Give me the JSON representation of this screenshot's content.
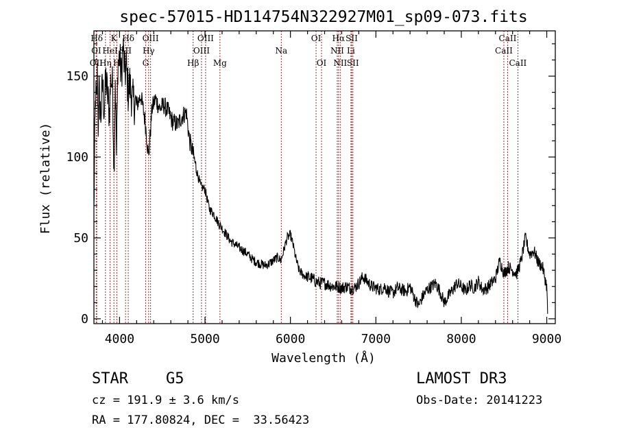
{
  "chart_data": {
    "type": "line",
    "title": "spec-57015-HD114754N322927M01_sp09-073.fits",
    "xlabel": "Wavelength (Å)",
    "ylabel": "Flux (relative)",
    "xlim": [
      3700,
      9100
    ],
    "ylim": [
      -3,
      178
    ],
    "x_ticks": [
      4000,
      5000,
      6000,
      7000,
      8000,
      9000
    ],
    "y_ticks": [
      0,
      50,
      100,
      150
    ],
    "x_tick_labels": [
      "4000",
      "5000",
      "6000",
      "7000",
      "8000",
      "9000"
    ],
    "y_tick_labels": [
      "0",
      "50",
      "100",
      "150"
    ],
    "grid": false,
    "series": [
      {
        "color": "#000000",
        "points": [
          [
            3700,
            66
          ],
          [
            3710,
            110
          ],
          [
            3720,
            140
          ],
          [
            3730,
            130
          ],
          [
            3740,
            150
          ],
          [
            3750,
            120
          ],
          [
            3760,
            140
          ],
          [
            3780,
            125
          ],
          [
            3800,
            145
          ],
          [
            3820,
            130
          ],
          [
            3840,
            148
          ],
          [
            3860,
            138
          ],
          [
            3880,
            128
          ],
          [
            3900,
            150
          ],
          [
            3920,
            142
          ],
          [
            3935,
            90
          ],
          [
            3950,
            150
          ],
          [
            3965,
            100
          ],
          [
            3980,
            158
          ],
          [
            4000,
            162
          ],
          [
            4020,
            150
          ],
          [
            4040,
            168
          ],
          [
            4060,
            152
          ],
          [
            4080,
            155
          ],
          [
            4100,
            140
          ],
          [
            4120,
            145
          ],
          [
            4150,
            135
          ],
          [
            4200,
            132
          ],
          [
            4250,
            138
          ],
          [
            4300,
            122
          ],
          [
            4340,
            100
          ],
          [
            4380,
            130
          ],
          [
            4420,
            136
          ],
          [
            4470,
            130
          ],
          [
            4520,
            132
          ],
          [
            4570,
            128
          ],
          [
            4620,
            122
          ],
          [
            4680,
            120
          ],
          [
            4730,
            125
          ],
          [
            4780,
            128
          ],
          [
            4820,
            110
          ],
          [
            4860,
            102
          ],
          [
            4900,
            92
          ],
          [
            4950,
            82
          ],
          [
            5000,
            80
          ],
          [
            5050,
            68
          ],
          [
            5100,
            65
          ],
          [
            5150,
            60
          ],
          [
            5200,
            56
          ],
          [
            5250,
            52
          ],
          [
            5300,
            48
          ],
          [
            5350,
            46
          ],
          [
            5400,
            44
          ],
          [
            5450,
            42
          ],
          [
            5500,
            40
          ],
          [
            5550,
            37
          ],
          [
            5600,
            35
          ],
          [
            5650,
            34
          ],
          [
            5700,
            33
          ],
          [
            5750,
            34
          ],
          [
            5800,
            36
          ],
          [
            5850,
            38
          ],
          [
            5890,
            36
          ],
          [
            5920,
            42
          ],
          [
            5960,
            50
          ],
          [
            6000,
            52
          ],
          [
            6030,
            46
          ],
          [
            6060,
            38
          ],
          [
            6100,
            30
          ],
          [
            6150,
            27
          ],
          [
            6200,
            26
          ],
          [
            6250,
            25
          ],
          [
            6300,
            23
          ],
          [
            6350,
            22
          ],
          [
            6400,
            22
          ],
          [
            6450,
            21
          ],
          [
            6500,
            20
          ],
          [
            6550,
            20
          ],
          [
            6600,
            19
          ],
          [
            6650,
            20
          ],
          [
            6700,
            19
          ],
          [
            6750,
            19
          ],
          [
            6800,
            22
          ],
          [
            6850,
            26
          ],
          [
            6900,
            23
          ],
          [
            6950,
            20
          ],
          [
            7000,
            19
          ],
          [
            7050,
            18
          ],
          [
            7100,
            20
          ],
          [
            7150,
            17
          ],
          [
            7200,
            16
          ],
          [
            7250,
            19
          ],
          [
            7300,
            18
          ],
          [
            7350,
            17
          ],
          [
            7400,
            20
          ],
          [
            7450,
            13
          ],
          [
            7500,
            8
          ],
          [
            7550,
            14
          ],
          [
            7600,
            18
          ],
          [
            7650,
            20
          ],
          [
            7700,
            22
          ],
          [
            7750,
            17
          ],
          [
            7800,
            10
          ],
          [
            7850,
            14
          ],
          [
            7900,
            18
          ],
          [
            7950,
            22
          ],
          [
            8000,
            20
          ],
          [
            8050,
            17
          ],
          [
            8100,
            21
          ],
          [
            8150,
            19
          ],
          [
            8200,
            23
          ],
          [
            8250,
            18
          ],
          [
            8300,
            19
          ],
          [
            8350,
            22
          ],
          [
            8400,
            25
          ],
          [
            8450,
            36
          ],
          [
            8500,
            28
          ],
          [
            8550,
            32
          ],
          [
            8600,
            30
          ],
          [
            8650,
            28
          ],
          [
            8700,
            36
          ],
          [
            8750,
            50
          ],
          [
            8800,
            40
          ],
          [
            8850,
            42
          ],
          [
            8900,
            35
          ],
          [
            8950,
            32
          ],
          [
            9000,
            20
          ],
          [
            9010,
            3
          ]
        ]
      }
    ],
    "spectral_lines": [
      {
        "label": "Hδ",
        "wavelength": 3733,
        "row": 0
      },
      {
        "label": "K",
        "wavelength": 3934,
        "row": 0
      },
      {
        "label": "Hδ",
        "wavelength": 4102,
        "row": 0
      },
      {
        "label": "OIII",
        "wavelength": 4363,
        "row": 0
      },
      {
        "label": "OIII",
        "wavelength": 5007,
        "row": 0
      },
      {
        "label": "OI",
        "wavelength": 6300,
        "row": 0
      },
      {
        "label": "Hα",
        "wavelength": 6563,
        "row": 0
      },
      {
        "label": "SII",
        "wavelength": 6717,
        "row": 0
      },
      {
        "label": "CaII",
        "wavelength": 8542,
        "row": 0
      },
      {
        "label": "OI",
        "wavelength": 3727,
        "row": 1
      },
      {
        "label": "HeI",
        "wavelength": 3889,
        "row": 1
      },
      {
        "label": "SII",
        "wavelength": 4070,
        "row": 1
      },
      {
        "label": "Hγ",
        "wavelength": 4340,
        "row": 1
      },
      {
        "label": "OIII",
        "wavelength": 4959,
        "row": 1
      },
      {
        "label": "Na",
        "wavelength": 5893,
        "row": 1
      },
      {
        "label": "NII",
        "wavelength": 6548,
        "row": 1
      },
      {
        "label": "Li",
        "wavelength": 6708,
        "row": 1
      },
      {
        "label": "CaII",
        "wavelength": 8498,
        "row": 1
      },
      {
        "label": "OII",
        "wavelength": 3727,
        "row": 2
      },
      {
        "label": "Hη",
        "wavelength": 3835,
        "row": 2
      },
      {
        "label": "H",
        "wavelength": 3968,
        "row": 2
      },
      {
        "label": "G",
        "wavelength": 4305,
        "row": 2
      },
      {
        "label": "Hβ",
        "wavelength": 4861,
        "row": 2
      },
      {
        "label": "Mg",
        "wavelength": 5175,
        "row": 2
      },
      {
        "label": "OI",
        "wavelength": 6364,
        "row": 2
      },
      {
        "label": "NII",
        "wavelength": 6583,
        "row": 2
      },
      {
        "label": "SII",
        "wavelength": 6731,
        "row": 2
      },
      {
        "label": "CaII",
        "wavelength": 8662,
        "row": 2
      }
    ]
  },
  "info": {
    "object_type": "STAR",
    "subclass": "G5",
    "survey": "LAMOST DR3",
    "redshift": "cz = 191.9 ± 3.6 km/s",
    "obs_date": "Obs-Date: 20141223",
    "coordinates": "RA = 177.80824, DEC =  33.56423"
  }
}
